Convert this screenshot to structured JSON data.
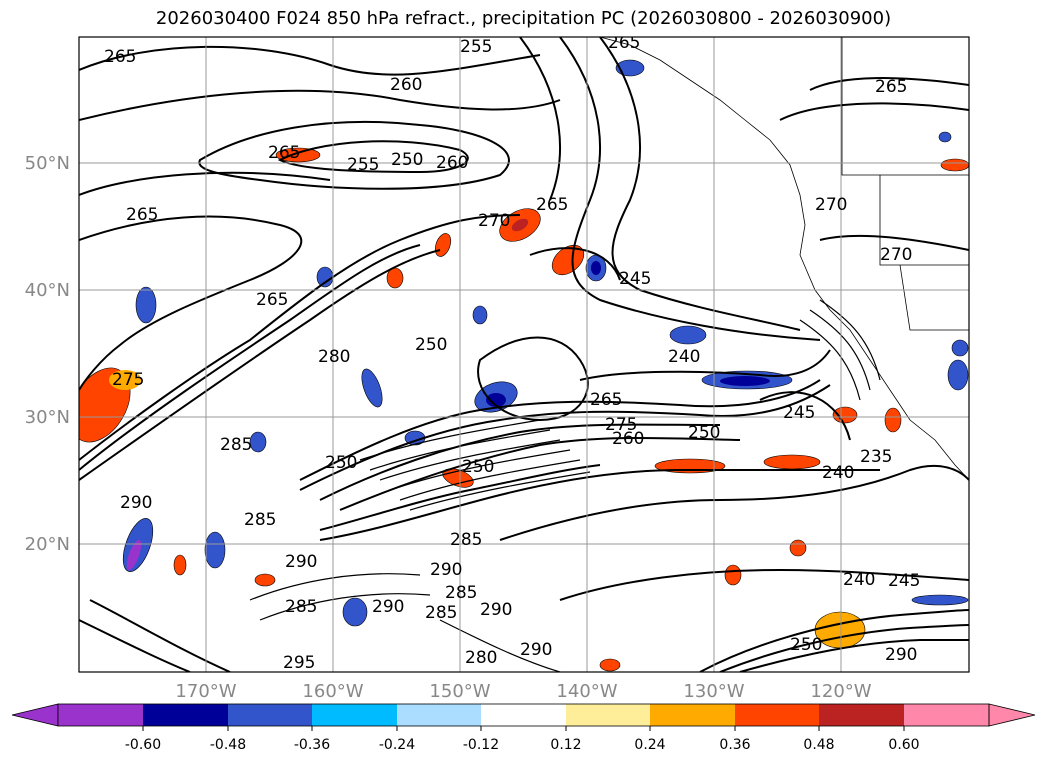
{
  "title": "2026030400 F024 850 hPa refract., precipitation PC (2026030800 - 2026030900)",
  "lon_labels": [
    "170°W",
    "160°W",
    "150°W",
    "140°W",
    "130°W",
    "120°W"
  ],
  "lat_labels": [
    "50°N",
    "40°N",
    "30°N",
    "20°N"
  ],
  "colorbar": {
    "ticks": [
      "-0.60",
      "-0.48",
      "-0.36",
      "-0.24",
      "-0.12",
      "0.12",
      "0.24",
      "0.36",
      "0.48",
      "0.60"
    ],
    "colors": [
      "#9933cc",
      "#000099",
      "#3355cc",
      "#00bbff",
      "#aaddff",
      "#ffffff",
      "#ffee99",
      "#ffaa00",
      "#ff4400",
      "#bb2222",
      "#ff88aa"
    ]
  },
  "contour_labels": [
    {
      "text": "265"
    },
    {
      "text": "255"
    },
    {
      "text": "265"
    },
    {
      "text": "260"
    },
    {
      "text": "265"
    },
    {
      "text": "255"
    },
    {
      "text": "250"
    },
    {
      "text": "260"
    },
    {
      "text": "265"
    },
    {
      "text": "270"
    },
    {
      "text": "265"
    },
    {
      "text": "245"
    },
    {
      "text": "265"
    },
    {
      "text": "270"
    },
    {
      "text": "250"
    },
    {
      "text": "240"
    },
    {
      "text": "280"
    },
    {
      "text": "275"
    },
    {
      "text": "265"
    },
    {
      "text": "275"
    },
    {
      "text": "260"
    },
    {
      "text": "250"
    },
    {
      "text": "245"
    },
    {
      "text": "285"
    },
    {
      "text": "250"
    },
    {
      "text": "250"
    },
    {
      "text": "240"
    },
    {
      "text": "235"
    },
    {
      "text": "290"
    },
    {
      "text": "285"
    },
    {
      "text": "285"
    },
    {
      "text": "290"
    },
    {
      "text": "290"
    },
    {
      "text": "285"
    },
    {
      "text": "285"
    },
    {
      "text": "290"
    },
    {
      "text": "285"
    },
    {
      "text": "240"
    },
    {
      "text": "245"
    },
    {
      "text": "250"
    },
    {
      "text": "290"
    },
    {
      "text": "295"
    },
    {
      "text": "290"
    },
    {
      "text": "280"
    },
    {
      "text": "290"
    },
    {
      "text": "270"
    },
    {
      "text": "265"
    }
  ]
}
